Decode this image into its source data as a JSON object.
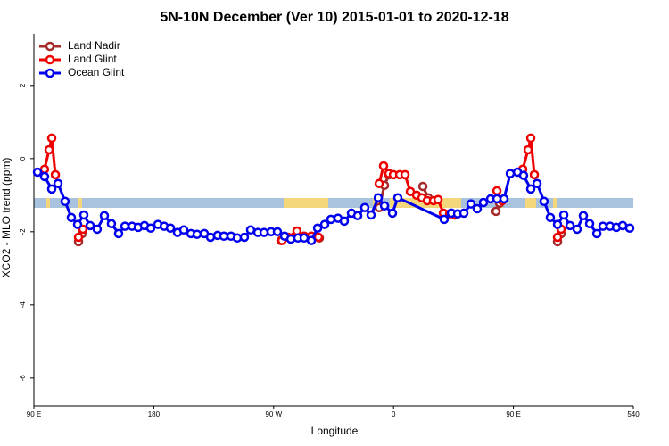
{
  "chart_data": {
    "type": "line",
    "title": "5N-10N December (Ver 10)   2015-01-01 to 2020-12-18",
    "x_label": "Longitude",
    "y_label": "XCO2 - MLO trend (ppm)",
    "xlim": [
      90,
      540
    ],
    "xticks": [
      {
        "value": 90,
        "label": "90 E"
      },
      180,
      {
        "value": 270,
        "label": "90 W"
      },
      {
        "value": 360,
        "label": "0"
      },
      {
        "value": 450,
        "label": "90 E"
      },
      540
    ],
    "ylim": [
      -6.76,
      3.41
    ],
    "yticks": [
      -6,
      -4,
      -2,
      0,
      2
    ],
    "legend": "top-left",
    "series": [
      {
        "name": "Land Nadir",
        "color": "#a52a2a",
        "x": [
          123.5,
          126.2,
          null,
          275.5,
          304.3,
          null,
          349.2,
          353.2,
          356.5,
          null,
          382.0,
          386.0,
          null,
          436.9,
          439.6,
          null,
          483.1,
          485.8
        ],
        "values": [
          -2.27,
          -2.05,
          null,
          -2.24,
          -2.17,
          null,
          -1.34,
          -0.73,
          -0.44,
          null,
          -0.76,
          -1.07,
          null,
          -1.44,
          -1.22,
          null,
          -2.27,
          -2.05
        ]
      },
      {
        "name": "Land Glint",
        "color": "#ee0000",
        "x": [
          98.0,
          101.4,
          103.4,
          106.1,
          null,
          123.5,
          126.8,
          null,
          276.2,
          280.8,
          287.5,
          292.9,
          298.3,
          303.6,
          null,
          349.2,
          352.5,
          356.5,
          359.9,
          364.6,
          368.6,
          372.6,
          377.3,
          381.3,
          385.3,
          390.0,
          393.4,
          397.4,
          402.1,
          406.1,
          null,
          437.6,
          441.6,
          null,
          457.0,
          461.0,
          463.0,
          465.7,
          null,
          483.1,
          485.8
        ],
        "values": [
          -0.29,
          0.24,
          0.56,
          -0.44,
          null,
          -2.15,
          -1.93,
          null,
          -2.24,
          -2.15,
          -1.98,
          -2.12,
          -2.12,
          -2.15,
          null,
          -0.68,
          -0.2,
          -0.41,
          -0.44,
          -0.44,
          -0.44,
          -0.9,
          -1.0,
          -1.07,
          -1.15,
          -1.15,
          -1.12,
          -1.49,
          -1.51,
          -1.54,
          null,
          -0.88,
          -1.15,
          null,
          -0.29,
          0.24,
          0.56,
          -0.44,
          null,
          -2.15,
          -1.93
        ]
      },
      {
        "name": "Ocean Glint",
        "color": "#0000ee",
        "x": [
          92.7,
          98.0,
          103.4,
          108.1,
          113.4,
          118.1,
          122.8,
          127.5,
          132.2,
          137.5,
          142.9,
          148.2,
          153.6,
          158.3,
          163.7,
          168.3,
          173.0,
          177.7,
          183.1,
          187.8,
          192.5,
          197.8,
          202.5,
          207.9,
          212.5,
          217.9,
          222.6,
          227.9,
          232.6,
          238.0,
          242.7,
          248.0,
          252.7,
          258.1,
          262.8,
          268.1,
          272.8,
          278.2,
          282.9,
          288.2,
          292.9,
          298.3,
          303.0,
          308.3,
          313.0,
          318.3,
          323.0,
          328.4,
          333.1,
          338.4,
          343.1,
          348.5,
          353.2,
          359.2,
          363.2,
          398.0,
          403.4,
          408.1,
          412.8,
          418.1,
          422.8,
          427.5,
          432.9,
          437.6,
          442.9,
          447.6,
          453.0,
          457.6,
          463.0,
          467.7,
          473.0,
          477.7,
          483.1,
          487.8,
          492.5,
          497.8,
          502.5,
          507.2,
          512.6,
          517.2,
          522.6,
          527.3,
          532.0,
          537.3
        ],
        "values": [
          -0.37,
          -0.49,
          -0.83,
          -0.68,
          -1.17,
          -1.61,
          -1.8,
          -1.54,
          -1.83,
          -1.93,
          -1.56,
          -1.78,
          -2.05,
          -1.85,
          -1.85,
          -1.88,
          -1.83,
          -1.9,
          -1.8,
          -1.85,
          -1.9,
          -2.02,
          -1.95,
          -2.05,
          -2.07,
          -2.05,
          -2.15,
          -2.1,
          -2.12,
          -2.12,
          -2.17,
          -2.15,
          -1.95,
          -2.02,
          -2.02,
          -2.0,
          -2.0,
          -2.12,
          -2.2,
          -2.17,
          -2.17,
          -2.24,
          -1.9,
          -1.8,
          -1.66,
          -1.63,
          -1.71,
          -1.49,
          -1.56,
          -1.34,
          -1.54,
          -1.07,
          -1.29,
          -1.49,
          -1.07,
          -1.66,
          -1.49,
          -1.51,
          -1.49,
          -1.24,
          -1.37,
          -1.2,
          -1.1,
          -1.1,
          -1.1,
          -0.41,
          -0.37,
          -0.46,
          -0.83,
          -0.68,
          -1.17,
          -1.61,
          -1.8,
          -1.54,
          -1.83,
          -1.93,
          -1.56,
          -1.78,
          -2.05,
          -1.85,
          -1.85,
          -1.88,
          -1.83,
          -1.9
        ]
      }
    ]
  }
}
